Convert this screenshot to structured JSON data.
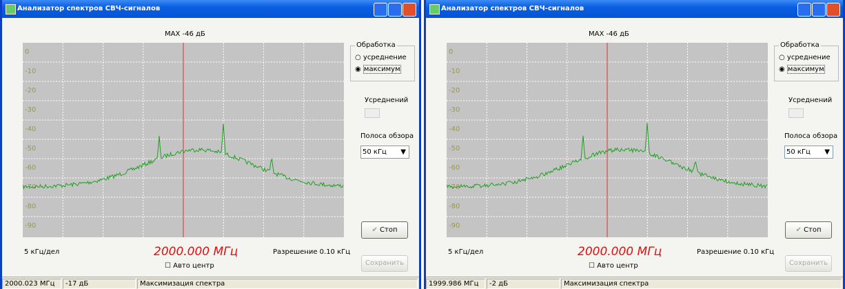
{
  "y_labels": [
    "0",
    "-10",
    "-20",
    "-30",
    "-40",
    "-50",
    "-60",
    "-70",
    "-80",
    "-90"
  ],
  "windows": [
    {
      "title": "Анализатор спектров СВЧ-сигналов",
      "max_label": "MAX -46 дБ",
      "processing": {
        "title": "Обработка",
        "options": [
          "усреднение",
          "максимум"
        ]
      },
      "averages_label": "Усреднений",
      "band_label": "Полоса обзора",
      "band_value": "50 кГц",
      "stop": "Стоп",
      "save": "Сохранить",
      "scale": "5 кГц/дел",
      "frequency": "2000.000 МГц",
      "resolution": "Разрешение 0.10 кГц",
      "auto_center": "Авто центр",
      "status": [
        "2000.023 МГц",
        "-17 дБ",
        "Максимизация спектра"
      ]
    },
    {
      "title": "Анализатор спектров СВЧ-сигналов",
      "max_label": "MAX -46 дБ",
      "processing": {
        "title": "Обработка",
        "options": [
          "усреднение",
          "максимум"
        ]
      },
      "averages_label": "Усреднений",
      "band_label": "Полоса обзора",
      "band_value": "50 кГц",
      "stop": "Стоп",
      "save": "Сохранить",
      "scale": "5 кГц/дел",
      "frequency": "2000.000 МГц",
      "resolution": "Разрешение 0.10 кГц",
      "auto_center": "Авто центр",
      "status": [
        "1999.986 МГц",
        "-2 дБ",
        "Максимизация спектра"
      ]
    }
  ]
}
